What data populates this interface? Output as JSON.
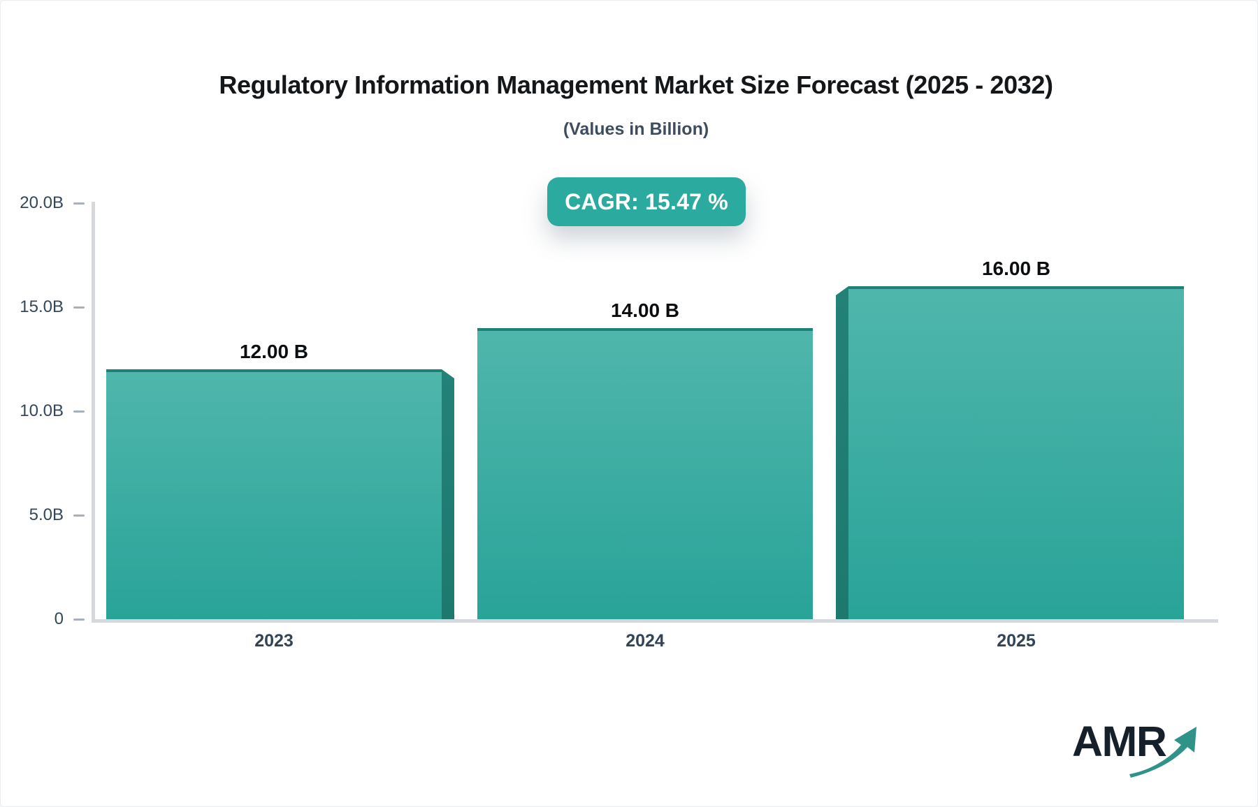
{
  "page": {
    "background": "#ffffff",
    "border_color": "#ebedef"
  },
  "header": {
    "title": "Regulatory Information Management Market Size Forecast (2025 - 2032)",
    "subtitle": "(Values in Billion)"
  },
  "badge": {
    "label": "CAGR: 15.47 %",
    "bg": "#2baa9f",
    "text_color": "#ffffff"
  },
  "chart_data": {
    "type": "bar",
    "title": "Regulatory Information Management Market Size Forecast (2025 - 2032)",
    "subtitle": "(Values in Billion)",
    "unit": "Billion",
    "categories": [
      "2023",
      "2024",
      "2025"
    ],
    "values": [
      12.0,
      14.0,
      16.0
    ],
    "value_labels": [
      "12.00 B",
      "14.00 B",
      "16.00 B"
    ],
    "cagr_label": "CAGR: 15.47 %",
    "ylim": [
      0,
      20
    ],
    "y_ticks": [
      {
        "value": 20,
        "label": "20.0B"
      },
      {
        "value": 15,
        "label": "15.0B"
      },
      {
        "value": 10,
        "label": "10.0B"
      },
      {
        "value": 5,
        "label": "5.0B"
      },
      {
        "value": 0,
        "label": "0"
      }
    ],
    "grid": false,
    "legend": "none",
    "bar_colors": {
      "top": "#50b6ac",
      "bottom": "#29a398",
      "edge": "#1e8076",
      "side_top": "#238278",
      "side_bottom": "#1e786e"
    },
    "side_face": [
      "right",
      null,
      "left"
    ],
    "axis_colors": {
      "label": "#33475b",
      "tick": "#a8b1ba",
      "line": "#d5d8dc"
    }
  },
  "logo": {
    "text": "AMR",
    "text_color": "#15202a",
    "arrow_color": "#2f9389"
  }
}
